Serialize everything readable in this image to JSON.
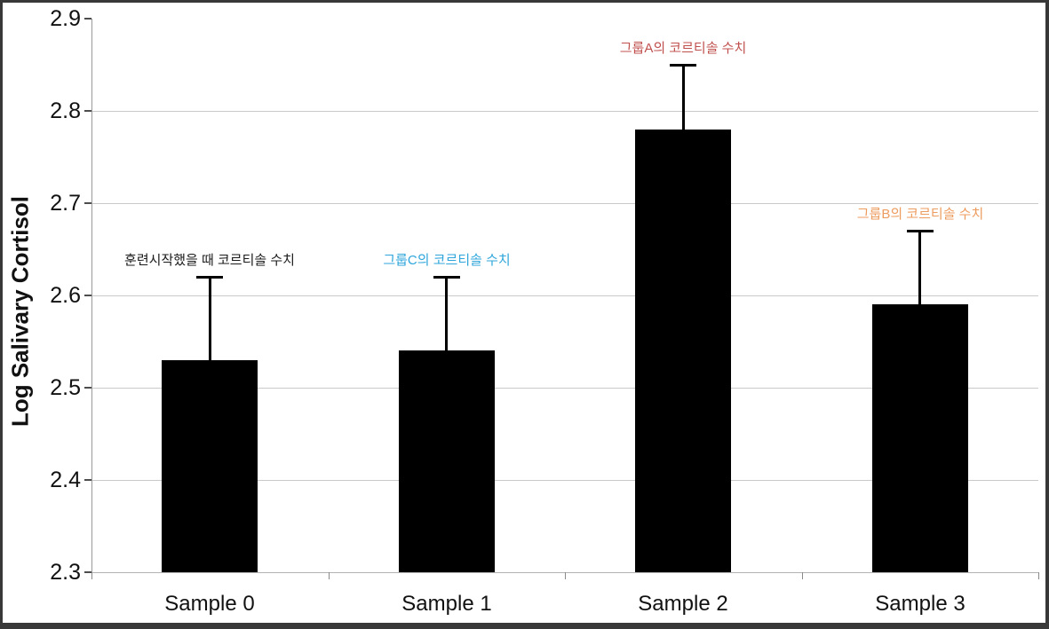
{
  "chart_data": {
    "type": "bar",
    "categories": [
      "Sample 0",
      "Sample 1",
      "Sample 2",
      "Sample 3"
    ],
    "values": [
      2.53,
      2.54,
      2.78,
      2.59
    ],
    "error_plus": [
      0.09,
      0.08,
      0.07,
      0.08
    ],
    "error_bar_tops": [
      2.62,
      2.62,
      2.85,
      2.67
    ],
    "annotations": [
      {
        "text": "훈련시작했을 때 코르티솔 수치",
        "color": "#1a1a1a",
        "category_index": 0
      },
      {
        "text": "그룹C의 코르티솔 수치",
        "color": "#2ea6db",
        "category_index": 1
      },
      {
        "text": "그룹A의 코르티솔 수치",
        "color": "#c0504d",
        "category_index": 2
      },
      {
        "text": "그룹B의 코르티솔 수치",
        "color": "#ed9c5f",
        "category_index": 3
      }
    ],
    "title": "",
    "xlabel": "",
    "ylabel": "Log Salivary Cortisol",
    "ylim": [
      2.3,
      2.9
    ],
    "yticks": [
      2.3,
      2.4,
      2.5,
      2.6,
      2.7,
      2.8,
      2.9
    ],
    "ytick_labels": [
      "2.3",
      "2.4",
      "2.5",
      "2.6",
      "2.7",
      "2.8",
      "2.9"
    ],
    "bar_color": "#000000",
    "error_color": "#000000",
    "grid": true,
    "legend_position": "none",
    "colors": {
      "grid": "#c9c9c9",
      "axis": "#9a9a9a",
      "frame": "#383838",
      "background": "#ffffff",
      "tick_text": "#111111"
    }
  }
}
